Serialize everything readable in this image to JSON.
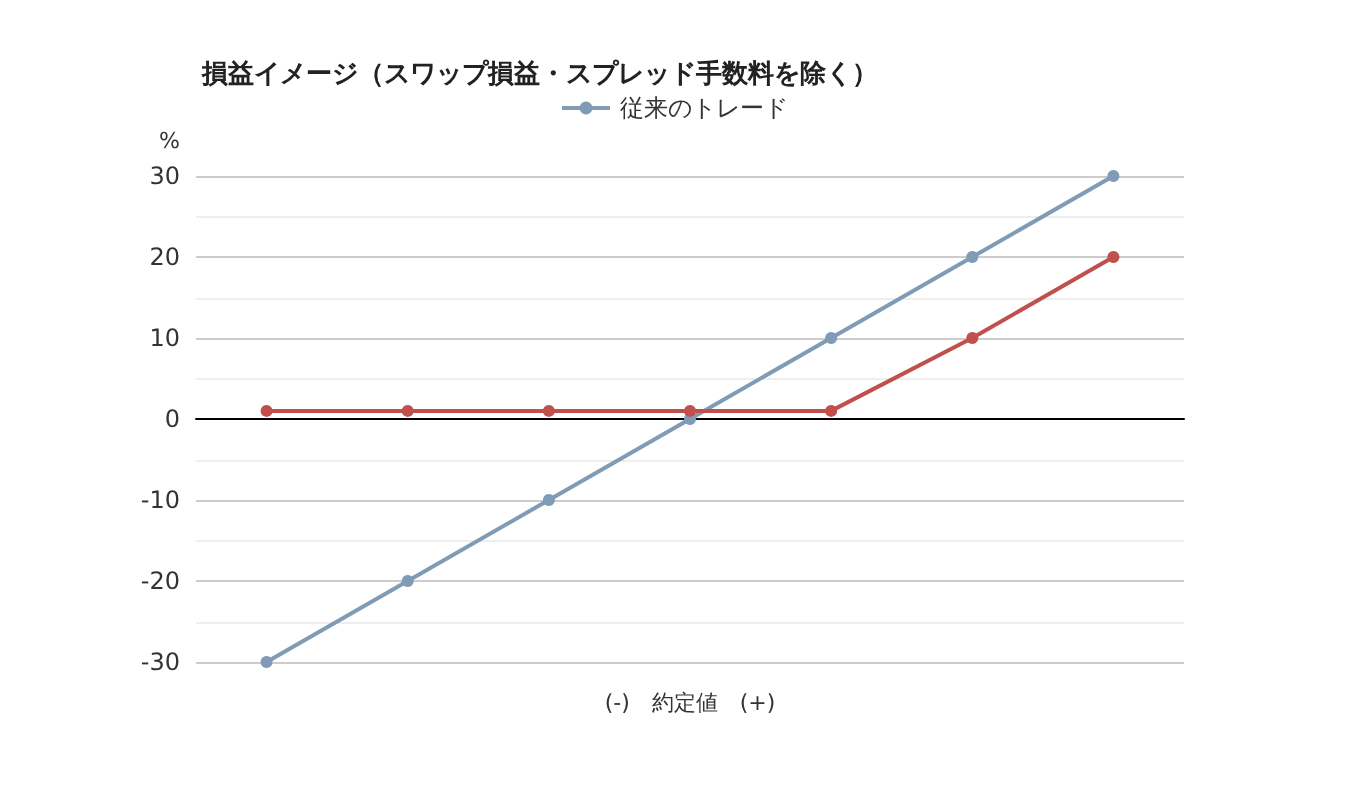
{
  "chart_data": {
    "type": "line",
    "title": "損益イメージ（スワップ損益・スプレッド手数料を除く）",
    "xlabel": "(-)　約定値　(+)",
    "ylabel": "%",
    "categories": [
      null,
      null,
      null,
      null,
      null,
      null,
      null
    ],
    "series": [
      {
        "name": "従来のトレード",
        "color": "#7f9bb5",
        "values": [
          -30,
          -20,
          -10,
          0,
          10,
          20,
          30
        ]
      },
      {
        "color": "#c0504d",
        "values": [
          1,
          1,
          1,
          1,
          1,
          10,
          20
        ]
      }
    ],
    "ylim": [
      -30,
      30
    ],
    "yticks": [
      -30,
      -20,
      -10,
      0,
      10,
      20,
      30
    ],
    "grid": true,
    "legend": "top",
    "marker": "circle",
    "line_style": "solid"
  }
}
